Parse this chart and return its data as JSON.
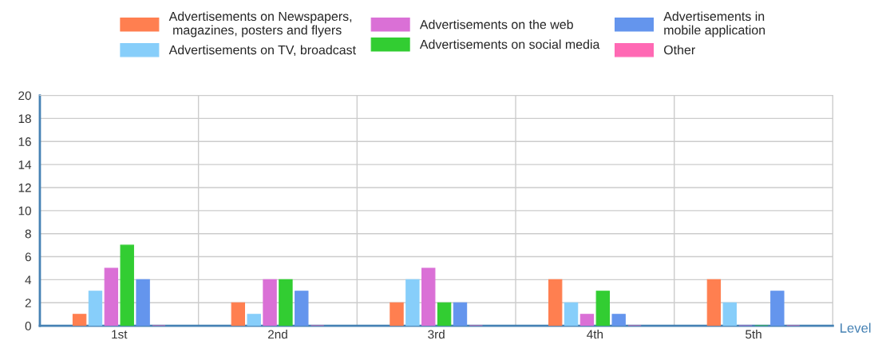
{
  "chart_data": {
    "type": "bar",
    "xlabel": "Level",
    "categories": [
      "1st",
      "2nd",
      "3rd",
      "4th",
      "5th"
    ],
    "series": [
      {
        "name": "Advertisements on Newspapers,\n magazines, posters and flyers",
        "color": "#ff7f50",
        "values": [
          1,
          2,
          2,
          4,
          4
        ]
      },
      {
        "name": "Advertisements on TV, broadcast",
        "color": "#87cefa",
        "values": [
          3,
          1,
          4,
          2,
          2
        ]
      },
      {
        "name": "Advertisements on the web",
        "color": "#da70d6",
        "values": [
          5,
          4,
          5,
          1,
          0
        ]
      },
      {
        "name": "Advertisements on social media",
        "color": "#32cd32",
        "values": [
          7,
          4,
          2,
          3,
          0
        ]
      },
      {
        "name": "Advertisements in\nmobile application",
        "color": "#6495ed",
        "values": [
          4,
          3,
          2,
          1,
          3
        ]
      },
      {
        "name": "Other",
        "color": "#ff69b4",
        "values": [
          0,
          0,
          0,
          0,
          0
        ]
      }
    ],
    "ylim": [
      0,
      20
    ],
    "yticks": [
      0,
      2,
      4,
      6,
      8,
      10,
      12,
      14,
      16,
      18,
      20
    ],
    "grid": true,
    "legend": "top"
  }
}
